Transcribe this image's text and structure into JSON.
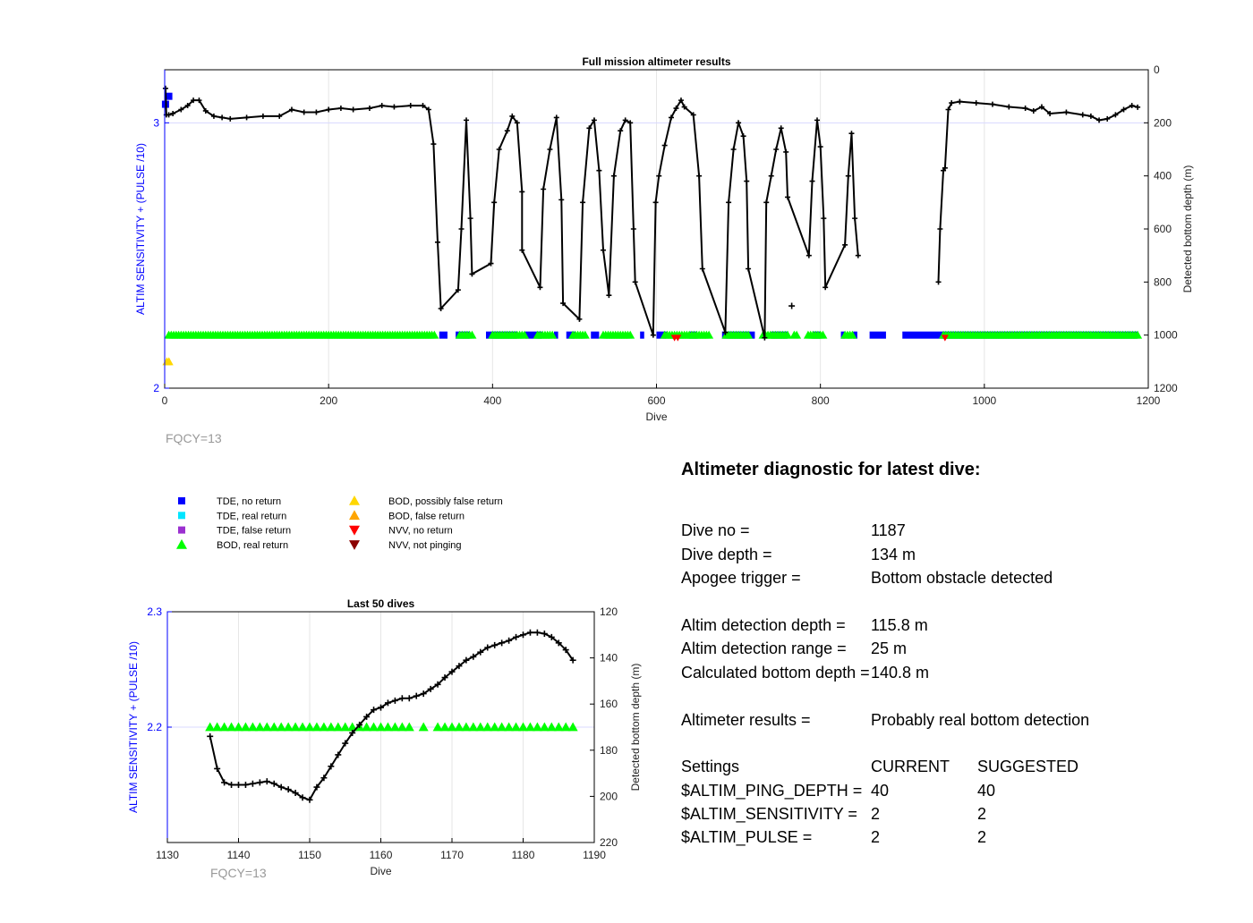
{
  "colors": {
    "left_axis": "#0000ff",
    "tde_no_return": "#0000ff",
    "tde_real_return": "#00e5ff",
    "tde_false_return": "#9b30d0",
    "bod_real_return": "#00ff00",
    "bod_possibly_false": "#ffd700",
    "bod_false": "#ffa500",
    "nvv_no_return": "#ff0000",
    "nvv_not_pinging": "#8b0000",
    "depth_line": "#000000",
    "fqcy_text": "#999999"
  },
  "legend": [
    {
      "label": "TDE, no return",
      "marker": "square",
      "color_key": "tde_no_return"
    },
    {
      "label": "TDE, real return",
      "marker": "square",
      "color_key": "tde_real_return"
    },
    {
      "label": "TDE, false return",
      "marker": "square",
      "color_key": "tde_false_return"
    },
    {
      "label": "BOD, real return",
      "marker": "triangle-up",
      "color_key": "bod_real_return"
    },
    {
      "label": "BOD, possibly false return",
      "marker": "triangle-up",
      "color_key": "bod_possibly_false"
    },
    {
      "label": "BOD, false return",
      "marker": "triangle-up",
      "color_key": "bod_false"
    },
    {
      "label": "NVV, no return",
      "marker": "triangle-down",
      "color_key": "nvv_no_return"
    },
    {
      "label": "NVV, not pinging",
      "marker": "triangle-down",
      "color_key": "nvv_not_pinging"
    }
  ],
  "chart_data": [
    {
      "type": "line",
      "title": "Full mission altimeter results",
      "xlabel": "Dive",
      "ylabel_left": "ALTIM SENSITIVITY + (PULSE /10)",
      "ylabel_right": "Detected bottom depth (m)",
      "annotation": "FQCY=13",
      "xlim": [
        0,
        1200
      ],
      "ylim_left": [
        2,
        3.2
      ],
      "ylim_right_reversed": [
        0,
        1200
      ],
      "xticks": [
        "0",
        "200",
        "400",
        "600",
        "800",
        "1000",
        "1200"
      ],
      "yticks_left": [
        "2",
        "3"
      ],
      "yticks_right": [
        "0",
        "200",
        "400",
        "600",
        "800",
        "1000",
        "1200"
      ],
      "grid": true,
      "depth_profile": [
        [
          1,
          70
        ],
        [
          2,
          170
        ],
        [
          5,
          170
        ],
        [
          10,
          165
        ],
        [
          20,
          150
        ],
        [
          28,
          135
        ],
        [
          35,
          115
        ],
        [
          42,
          115
        ],
        [
          50,
          155
        ],
        [
          60,
          175
        ],
        [
          70,
          180
        ],
        [
          80,
          185
        ],
        [
          100,
          180
        ],
        [
          120,
          175
        ],
        [
          140,
          175
        ],
        [
          155,
          150
        ],
        [
          170,
          160
        ],
        [
          185,
          160
        ],
        [
          200,
          150
        ],
        [
          215,
          145
        ],
        [
          230,
          150
        ],
        [
          250,
          145
        ],
        [
          265,
          135
        ],
        [
          280,
          140
        ],
        [
          300,
          135
        ],
        [
          315,
          135
        ],
        [
          322,
          150
        ],
        [
          328,
          280
        ],
        [
          333,
          650
        ],
        [
          337,
          900
        ],
        [
          358,
          830
        ],
        [
          362,
          600
        ],
        [
          368,
          190
        ],
        [
          373,
          560
        ],
        [
          375,
          770
        ],
        [
          398,
          730
        ],
        [
          402,
          500
        ],
        [
          408,
          300
        ],
        [
          418,
          230
        ],
        [
          424,
          175
        ],
        [
          430,
          200
        ],
        [
          436,
          460
        ],
        [
          436,
          680
        ],
        [
          458,
          820
        ],
        [
          462,
          450
        ],
        [
          470,
          300
        ],
        [
          478,
          180
        ],
        [
          484,
          490
        ],
        [
          486,
          880
        ],
        [
          506,
          940
        ],
        [
          510,
          500
        ],
        [
          518,
          220
        ],
        [
          524,
          190
        ],
        [
          530,
          380
        ],
        [
          535,
          680
        ],
        [
          542,
          850
        ],
        [
          548,
          400
        ],
        [
          556,
          230
        ],
        [
          562,
          190
        ],
        [
          568,
          200
        ],
        [
          572,
          600
        ],
        [
          574,
          800
        ],
        [
          596,
          1000
        ],
        [
          599,
          500
        ],
        [
          603,
          400
        ],
        [
          610,
          285
        ],
        [
          618,
          180
        ],
        [
          624,
          145
        ],
        [
          630,
          115
        ],
        [
          634,
          140
        ],
        [
          645,
          170
        ],
        [
          652,
          400
        ],
        [
          656,
          750
        ],
        [
          684,
          990
        ],
        [
          688,
          500
        ],
        [
          694,
          300
        ],
        [
          700,
          200
        ],
        [
          706,
          250
        ],
        [
          710,
          420
        ],
        [
          712,
          750
        ],
        [
          732,
          1010
        ],
        [
          734,
          500
        ],
        [
          740,
          400
        ],
        [
          746,
          300
        ],
        [
          752,
          220
        ],
        [
          758,
          310
        ],
        [
          760,
          480
        ],
        [
          786,
          700
        ],
        [
          790,
          420
        ],
        [
          796,
          190
        ],
        [
          800,
          290
        ],
        [
          804,
          560
        ],
        [
          806,
          820
        ],
        [
          830,
          660
        ],
        [
          834,
          400
        ],
        [
          838,
          240
        ],
        [
          842,
          560
        ],
        [
          846,
          700
        ],
        [
          944,
          800
        ],
        [
          946,
          600
        ],
        [
          950,
          380
        ],
        [
          952,
          370
        ],
        [
          956,
          150
        ],
        [
          960,
          125
        ],
        [
          970,
          120
        ],
        [
          990,
          125
        ],
        [
          1010,
          130
        ],
        [
          1030,
          140
        ],
        [
          1050,
          145
        ],
        [
          1060,
          155
        ],
        [
          1070,
          140
        ],
        [
          1080,
          165
        ],
        [
          1100,
          160
        ],
        [
          1120,
          170
        ],
        [
          1130,
          175
        ],
        [
          1140,
          190
        ],
        [
          1150,
          185
        ],
        [
          1160,
          170
        ],
        [
          1170,
          150
        ],
        [
          1180,
          135
        ],
        [
          1187,
          141
        ]
      ],
      "lone_points": [
        [
          765,
          890
        ]
      ],
      "tde_no_return_segments": [
        [
          335,
          345
        ],
        [
          355,
          372
        ],
        [
          392,
          430
        ],
        [
          440,
          460
        ],
        [
          475,
          480
        ],
        [
          490,
          500
        ],
        [
          520,
          530
        ],
        [
          580,
          585
        ],
        [
          600,
          612
        ],
        [
          640,
          650
        ],
        [
          680,
          720
        ],
        [
          740,
          760
        ],
        [
          790,
          800
        ],
        [
          825,
          830
        ],
        [
          840,
          845
        ],
        [
          860,
          880
        ],
        [
          900,
          1187
        ]
      ],
      "bod_real_segments": [
        [
          5,
          330
        ],
        [
          360,
          375
        ],
        [
          400,
          440
        ],
        [
          455,
          475
        ],
        [
          498,
          515
        ],
        [
          535,
          570
        ],
        [
          610,
          665
        ],
        [
          685,
          712
        ],
        [
          730,
          760
        ],
        [
          768,
          772
        ],
        [
          785,
          803
        ],
        [
          830,
          840
        ],
        [
          950,
          1187
        ]
      ],
      "bod_possibly_false": [
        [
          3,
          2.1
        ],
        [
          0.5,
          2.1
        ]
      ],
      "tde_no_return_points": [
        [
          1,
          3.07
        ],
        [
          5,
          3.1
        ]
      ],
      "nvv_no_return": [
        [
          622,
          2.19
        ],
        [
          626,
          2.19
        ],
        [
          952,
          2.19
        ]
      ]
    },
    {
      "type": "line",
      "title": "Last 50 dives",
      "xlabel": "Dive",
      "ylabel_left": "ALTIM SENSITIVITY + (PULSE /10)",
      "ylabel_right": "Detected bottom depth (m)",
      "annotation": "FQCY=13",
      "xlim": [
        1130,
        1190
      ],
      "ylim_left": [
        2.1,
        2.3
      ],
      "ylim_right_reversed": [
        120,
        220
      ],
      "xticks": [
        "1130",
        "1140",
        "1150",
        "1160",
        "1170",
        "1180",
        "1190"
      ],
      "yticks_left": [
        "2.2",
        "2.3"
      ],
      "yticks_right": [
        "120",
        "140",
        "160",
        "180",
        "200",
        "220"
      ],
      "grid": true,
      "x": [
        1136,
        1137,
        1138,
        1139,
        1140,
        1141,
        1142,
        1143,
        1144,
        1145,
        1146,
        1147,
        1148,
        1149,
        1150,
        1151,
        1152,
        1153,
        1154,
        1155,
        1156,
        1157,
        1158,
        1159,
        1160,
        1161,
        1162,
        1163,
        1164,
        1165,
        1166,
        1167,
        1168,
        1169,
        1170,
        1171,
        1172,
        1173,
        1174,
        1175,
        1176,
        1177,
        1178,
        1179,
        1180,
        1181,
        1182,
        1183,
        1184,
        1185,
        1186,
        1187
      ],
      "depth": [
        174,
        188,
        194,
        195,
        195,
        195,
        194.5,
        194,
        193.5,
        194.5,
        196,
        197,
        198.5,
        200.5,
        201.5,
        196,
        192,
        187,
        182,
        177,
        172.5,
        169,
        165.5,
        162.5,
        161.5,
        159.5,
        158.5,
        157.5,
        157.5,
        156.5,
        155.5,
        153.5,
        151.5,
        148.5,
        146,
        143.5,
        141,
        139.5,
        137.5,
        135.5,
        134.5,
        133.5,
        132.5,
        131,
        130,
        129,
        129,
        129.5,
        131,
        133.5,
        136.5,
        141
      ],
      "bod_real_x": [
        1136,
        1137,
        1138,
        1139,
        1140,
        1141,
        1142,
        1143,
        1144,
        1145,
        1146,
        1147,
        1148,
        1149,
        1150,
        1151,
        1152,
        1153,
        1154,
        1155,
        1156,
        1157,
        1158,
        1159,
        1160,
        1161,
        1162,
        1163,
        1164,
        1166,
        1168,
        1169,
        1170,
        1171,
        1172,
        1173,
        1174,
        1175,
        1176,
        1177,
        1178,
        1179,
        1180,
        1181,
        1182,
        1183,
        1184,
        1185,
        1186,
        1187
      ],
      "bod_value": 2.2
    }
  ],
  "diagnostic": {
    "title": "Altimeter diagnostic for latest dive:",
    "dive_no_label": "Dive no =",
    "dive_no_value": "1187",
    "dive_depth_label": "Dive depth =",
    "dive_depth_value": "134 m",
    "apogee_label": "Apogee trigger =",
    "apogee_value": "Bottom obstacle detected",
    "altim_depth_label": "Altim detection depth =",
    "altim_depth_value": "115.8 m",
    "altim_range_label": "Altim detection range =",
    "altim_range_value": "25 m",
    "calc_depth_label": "Calculated bottom depth =",
    "calc_depth_value": "140.8 m",
    "results_label": "Altimeter results =",
    "results_value": "Probably real bottom detection",
    "settings_label": "Settings",
    "current_label": "CURRENT",
    "suggested_label": "SUGGESTED",
    "ping_depth_label": "$ALTIM_PING_DEPTH =",
    "ping_depth_current": "40",
    "ping_depth_suggested": "40",
    "sensitivity_label": "$ALTIM_SENSITIVITY =",
    "sensitivity_current": "2",
    "sensitivity_suggested": "2",
    "pulse_label": "$ALTIM_PULSE =",
    "pulse_current": "2",
    "pulse_suggested": "2"
  }
}
